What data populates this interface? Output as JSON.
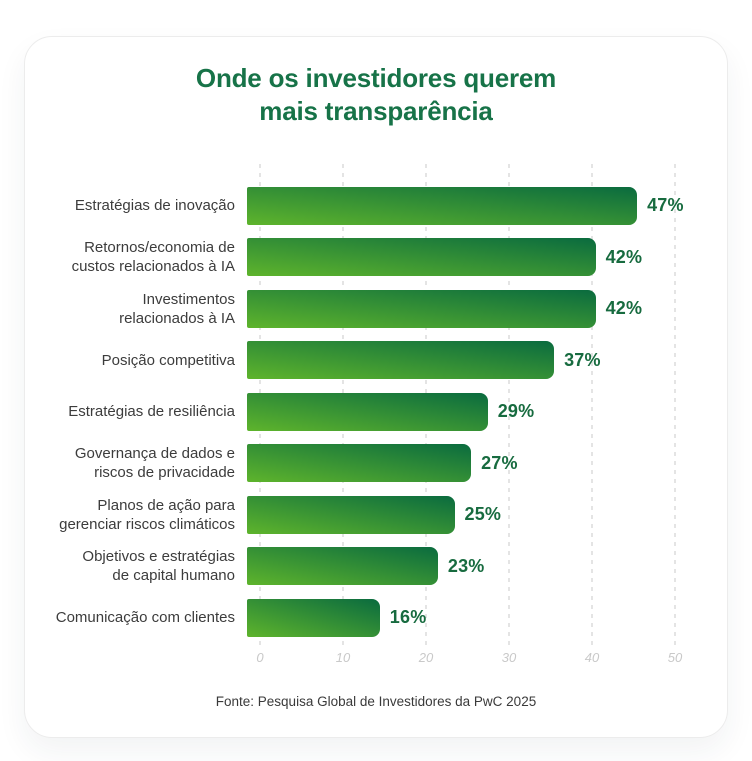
{
  "title": {
    "line1": "Onde os investidores querem",
    "line2": "mais transparência"
  },
  "footer": {
    "source": "Fonte: Pesquisa Global de Investidores da PwC 2025"
  },
  "colors": {
    "title_green": "#177348",
    "value_green": "#176b3f",
    "bar_gradient_light": "#5eb42c",
    "bar_gradient_dark": "#0a6b3f",
    "label_gray": "#3c3c3c",
    "tick_gray": "#c9c9c9",
    "gridline_gray": "#e4e4e4",
    "card_background": "#ffffff"
  },
  "chart_data": {
    "type": "bar",
    "orientation": "horizontal",
    "title": "Onde os investidores querem mais transparência",
    "source": "Fonte: Pesquisa Global de Investidores da PwC 2025",
    "xlim": [
      0,
      50
    ],
    "x_ticks": [
      0,
      10,
      20,
      30,
      40,
      50
    ],
    "grid": "vertical-dashed",
    "legend": "none",
    "categories": [
      "Estratégias de inovação",
      "Retornos/economia de custos relacionados à IA",
      "Investimentos relacionados à IA",
      "Posição competitiva",
      "Estratégias de resiliência",
      "Governança de dados e riscos de privacidade",
      "Planos de ação para gerenciar riscos climáticos",
      "Objetivos e estratégias de capital humano",
      "Comunicação com clientes"
    ],
    "values": [
      47,
      42,
      42,
      37,
      29,
      27,
      25,
      23,
      16
    ],
    "items": [
      {
        "label_text": "Estratégias de inovação",
        "value": 47,
        "value_label": "47%"
      },
      {
        "label_text": "Retornos/economia de\ncustos relacionados à IA",
        "value": 42,
        "value_label": "42%"
      },
      {
        "label_text": "Investimentos\nrelacionados à IA",
        "value": 42,
        "value_label": "42%"
      },
      {
        "label_text": "Posição competitiva",
        "value": 37,
        "value_label": "37%"
      },
      {
        "label_text": "Estratégias de resiliência",
        "value": 29,
        "value_label": "29%"
      },
      {
        "label_text": "Governança de dados e\nriscos de privacidade",
        "value": 27,
        "value_label": "27%"
      },
      {
        "label_text": "Planos de ação para\ngerenciar riscos climáticos",
        "value": 25,
        "value_label": "25%"
      },
      {
        "label_text": "Objetivos e estratégias\nde capital humano",
        "value": 23,
        "value_label": "23%"
      },
      {
        "label_text": "Comunicação com clientes",
        "value": 16,
        "value_label": "16%"
      }
    ]
  }
}
